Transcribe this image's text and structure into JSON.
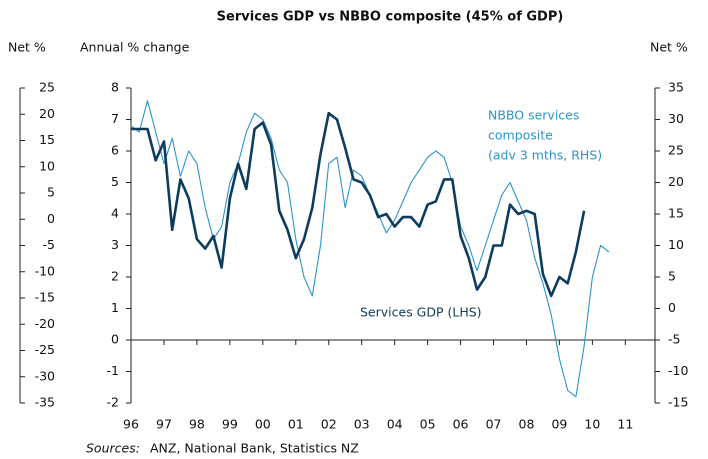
{
  "chart_data": {
    "type": "line",
    "title": "Services GDP vs NBBO composite (45% of GDP)",
    "y3_axis_label": "Net %",
    "y_axis_label": "Annual % change",
    "y2_axis_label": "Net %",
    "annotations": [
      "NBBO services",
      "composite",
      "(adv 3 mths, RHS)",
      "Services GDP (LHS)"
    ],
    "sources_label": "Sources:",
    "sources": "ANZ, National Bank, Statistics NZ",
    "xlim": [
      1996,
      2011.9
    ],
    "xticks": [
      {
        "value": 1996,
        "label": "96"
      },
      {
        "value": 1997,
        "label": "97"
      },
      {
        "value": 1998,
        "label": "98"
      },
      {
        "value": 1999,
        "label": "99"
      },
      {
        "value": 2000,
        "label": "00"
      },
      {
        "value": 2001,
        "label": "01"
      },
      {
        "value": 2002,
        "label": "02"
      },
      {
        "value": 2003,
        "label": "03"
      },
      {
        "value": 2004,
        "label": "04"
      },
      {
        "value": 2005,
        "label": "05"
      },
      {
        "value": 2006,
        "label": "06"
      },
      {
        "value": 2007,
        "label": "07"
      },
      {
        "value": 2008,
        "label": "08"
      },
      {
        "value": 2009,
        "label": "09"
      },
      {
        "value": 2010,
        "label": "10"
      },
      {
        "value": 2011,
        "label": "11"
      }
    ],
    "ylim": [
      -2,
      8
    ],
    "yticks": [
      8,
      7,
      6,
      5,
      4,
      3,
      2,
      1,
      0,
      -1,
      -2
    ],
    "y2lim": [
      -15,
      35
    ],
    "y2ticks": [
      35,
      30,
      25,
      20,
      15,
      10,
      5,
      0,
      -5,
      -10,
      -15
    ],
    "y3lim": [
      -35,
      25
    ],
    "y3ticks": [
      25,
      20,
      15,
      10,
      5,
      0,
      -5,
      -10,
      -15,
      -20,
      -25,
      -30,
      -35
    ],
    "series": [
      {
        "name": "Services GDP (LHS)",
        "color": "#0c3c5e",
        "axis": "y",
        "x": [
          1996,
          1996.25,
          1996.5,
          1996.75,
          1997,
          1997.25,
          1997.5,
          1997.75,
          1998,
          1998.25,
          1998.5,
          1998.75,
          1999,
          1999.25,
          1999.5,
          1999.75,
          2000,
          2000.25,
          2000.5,
          2000.75,
          2001,
          2001.25,
          2001.5,
          2001.75,
          2002,
          2002.25,
          2002.5,
          2002.75,
          2003,
          2003.25,
          2003.5,
          2003.75,
          2004,
          2004.25,
          2004.5,
          2004.75,
          2005,
          2005.25,
          2005.5,
          2005.75,
          2006,
          2006.25,
          2006.5,
          2006.75,
          2007,
          2007.25,
          2007.5,
          2007.75,
          2008,
          2008.25,
          2008.5,
          2008.75,
          2009,
          2009.25,
          2009.5,
          2009.75
        ],
        "values": [
          6.7,
          6.7,
          6.7,
          5.7,
          6.3,
          3.5,
          5.1,
          4.5,
          3.2,
          2.9,
          3.3,
          2.3,
          4.5,
          5.6,
          4.8,
          6.7,
          6.9,
          6.2,
          4.1,
          3.5,
          2.6,
          3.2,
          4.2,
          5.9,
          7.2,
          7.0,
          6.1,
          5.1,
          5.0,
          4.6,
          3.9,
          4.0,
          3.6,
          3.9,
          3.9,
          3.6,
          4.3,
          4.4,
          5.1,
          5.1,
          3.3,
          2.6,
          1.6,
          2.0,
          3.0,
          3.0,
          4.3,
          4.0,
          4.1,
          4.0,
          2.1,
          1.4,
          2.0,
          1.8,
          2.8,
          4.1
        ]
      },
      {
        "name": "NBBO services composite (adv 3 mths, RHS)",
        "color": "#2b95c9",
        "axis": "y2",
        "x": [
          1996,
          1996.25,
          1996.5,
          1996.75,
          1997,
          1997.25,
          1997.5,
          1997.75,
          1998,
          1998.25,
          1998.5,
          1998.75,
          1999,
          1999.25,
          1999.5,
          1999.75,
          2000,
          2000.25,
          2000.5,
          2000.75,
          2001,
          2001.25,
          2001.5,
          2001.75,
          2002,
          2002.25,
          2002.5,
          2002.75,
          2003,
          2003.25,
          2003.5,
          2003.75,
          2004,
          2004.25,
          2004.5,
          2004.75,
          2005,
          2005.25,
          2005.5,
          2005.75,
          2006,
          2006.25,
          2006.5,
          2006.75,
          2007,
          2007.25,
          2007.5,
          2007.75,
          2008,
          2008.25,
          2008.5,
          2008.75,
          2009,
          2009.25,
          2009.5,
          2009.75,
          2010,
          2010.25,
          2010.5
        ],
        "values": [
          29,
          28,
          33,
          28,
          23,
          27,
          21,
          25,
          23,
          16,
          11,
          13,
          20,
          23,
          28,
          31,
          30,
          27,
          22,
          20,
          11,
          5,
          2,
          10,
          23,
          24,
          16,
          22,
          21,
          18,
          15,
          12,
          14,
          17,
          20,
          22,
          24,
          25,
          24,
          20,
          13,
          10,
          6,
          10,
          14,
          18,
          20,
          17,
          14,
          8,
          4,
          -1,
          -8,
          -13,
          -14,
          -6,
          5,
          10,
          9
        ]
      }
    ]
  }
}
